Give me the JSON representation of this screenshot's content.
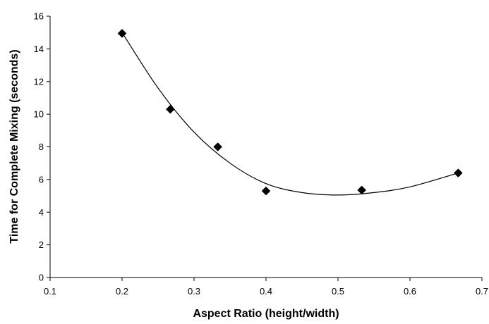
{
  "chart_data": {
    "type": "scatter",
    "title": "",
    "xlabel": "Aspect Ratio (height/width)",
    "ylabel": "Time for Complete Mixing (seconds)",
    "xlim": [
      0.1,
      0.7
    ],
    "ylim": [
      0,
      16
    ],
    "x_ticks": [
      "0.1",
      "0.2",
      "0.3",
      "0.4",
      "0.5",
      "0.6",
      "0.7"
    ],
    "y_ticks": [
      "0",
      "2",
      "4",
      "6",
      "8",
      "10",
      "12",
      "14",
      "16"
    ],
    "grid": false,
    "legend": "none",
    "marker": "diamond",
    "marker_color": "#000000",
    "series": [
      {
        "points": [
          {
            "x": 0.2,
            "y": 14.95
          },
          {
            "x": 0.267,
            "y": 10.3
          },
          {
            "x": 0.333,
            "y": 8.0
          },
          {
            "x": 0.4,
            "y": 5.3
          },
          {
            "x": 0.533,
            "y": 5.35
          },
          {
            "x": 0.667,
            "y": 6.4
          }
        ]
      }
    ],
    "trendline": {
      "type": "polynomial",
      "points": [
        {
          "x": 0.2,
          "y": 15.0
        },
        {
          "x": 0.25,
          "y": 11.6
        },
        {
          "x": 0.3,
          "y": 8.9
        },
        {
          "x": 0.35,
          "y": 7.0
        },
        {
          "x": 0.4,
          "y": 5.75
        },
        {
          "x": 0.45,
          "y": 5.2
        },
        {
          "x": 0.5,
          "y": 5.05
        },
        {
          "x": 0.55,
          "y": 5.2
        },
        {
          "x": 0.6,
          "y": 5.55
        },
        {
          "x": 0.667,
          "y": 6.4
        }
      ]
    }
  }
}
